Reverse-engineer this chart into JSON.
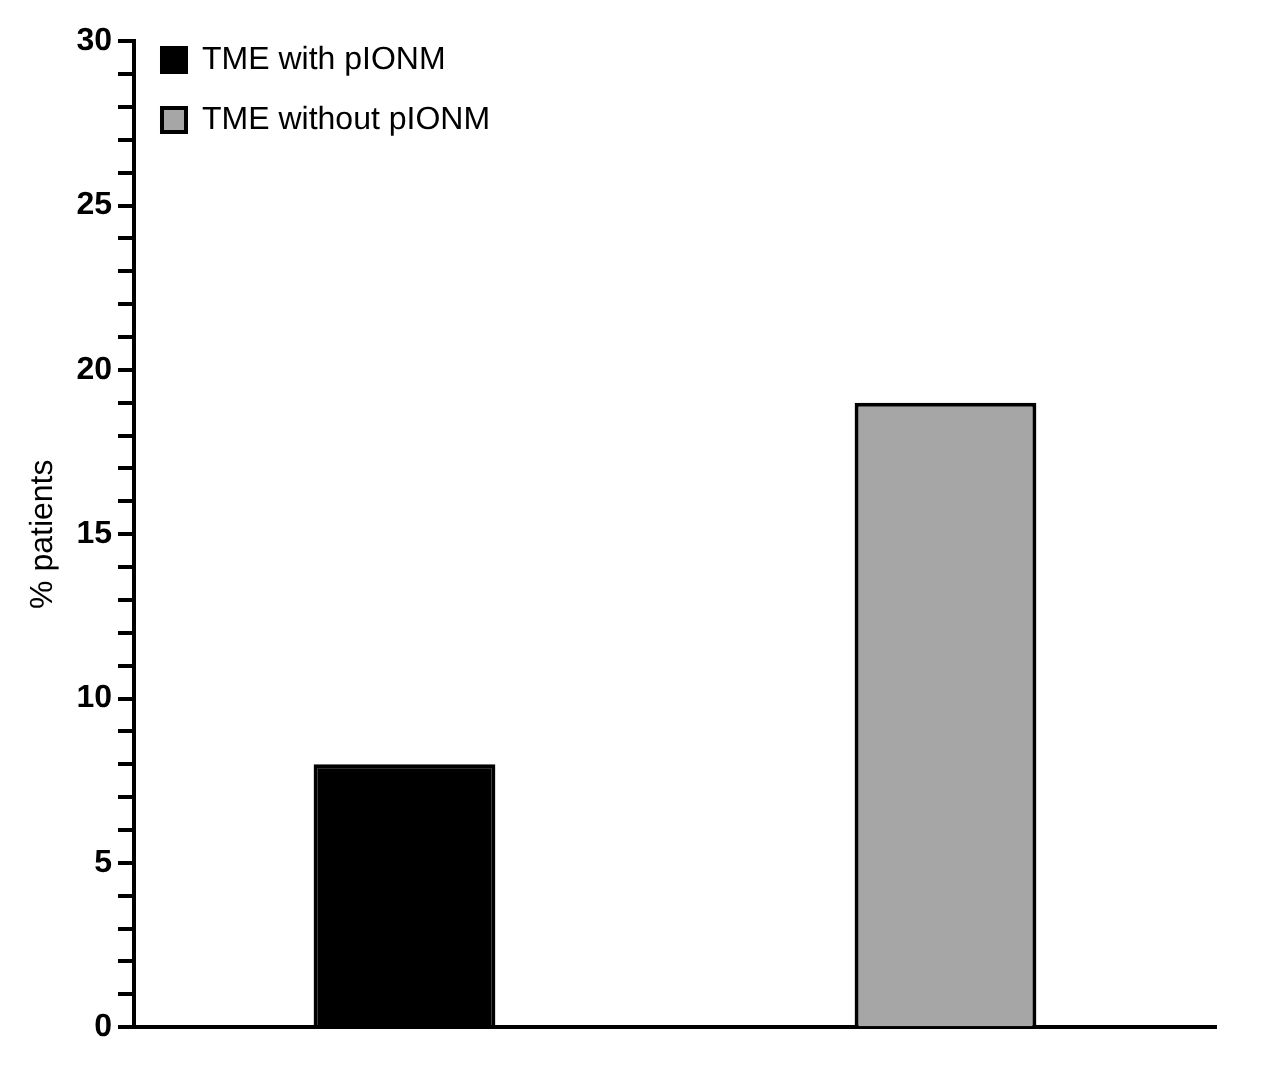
{
  "chart_data": {
    "type": "bar",
    "ylabel": "% patients",
    "categories": [
      null,
      null
    ],
    "series": [
      {
        "name": "TME with pIONM",
        "color": "#000000",
        "values": [
          8,
          null
        ]
      },
      {
        "name": "TME without pIONM",
        "color": "#a6a6a6",
        "values": [
          null,
          19
        ]
      }
    ],
    "ylim": [
      0,
      30
    ],
    "yticks": [
      0,
      {
        "value": 1,
        "label": null
      },
      {
        "value": 2,
        "label": null
      },
      {
        "value": 3,
        "label": null
      },
      {
        "value": 4,
        "label": null
      },
      5,
      {
        "value": 6,
        "label": null
      },
      {
        "value": 7,
        "label": null
      },
      {
        "value": 8,
        "label": null
      },
      {
        "value": 9,
        "label": null
      },
      10,
      {
        "value": 11,
        "label": null
      },
      {
        "value": 12,
        "label": null
      },
      {
        "value": 13,
        "label": null
      },
      {
        "value": 14,
        "label": null
      },
      15,
      {
        "value": 16,
        "label": null
      },
      {
        "value": 17,
        "label": null
      },
      {
        "value": 18,
        "label": null
      },
      {
        "value": 19,
        "label": null
      },
      20,
      {
        "value": 21,
        "label": null
      },
      {
        "value": 22,
        "label": null
      },
      {
        "value": 23,
        "label": null
      },
      {
        "value": 24,
        "label": null
      },
      25,
      {
        "value": 26,
        "label": null
      },
      {
        "value": 27,
        "label": null
      },
      {
        "value": 28,
        "label": null
      },
      {
        "value": 29,
        "label": null
      },
      30
    ],
    "grid": false,
    "legend": "top left"
  }
}
